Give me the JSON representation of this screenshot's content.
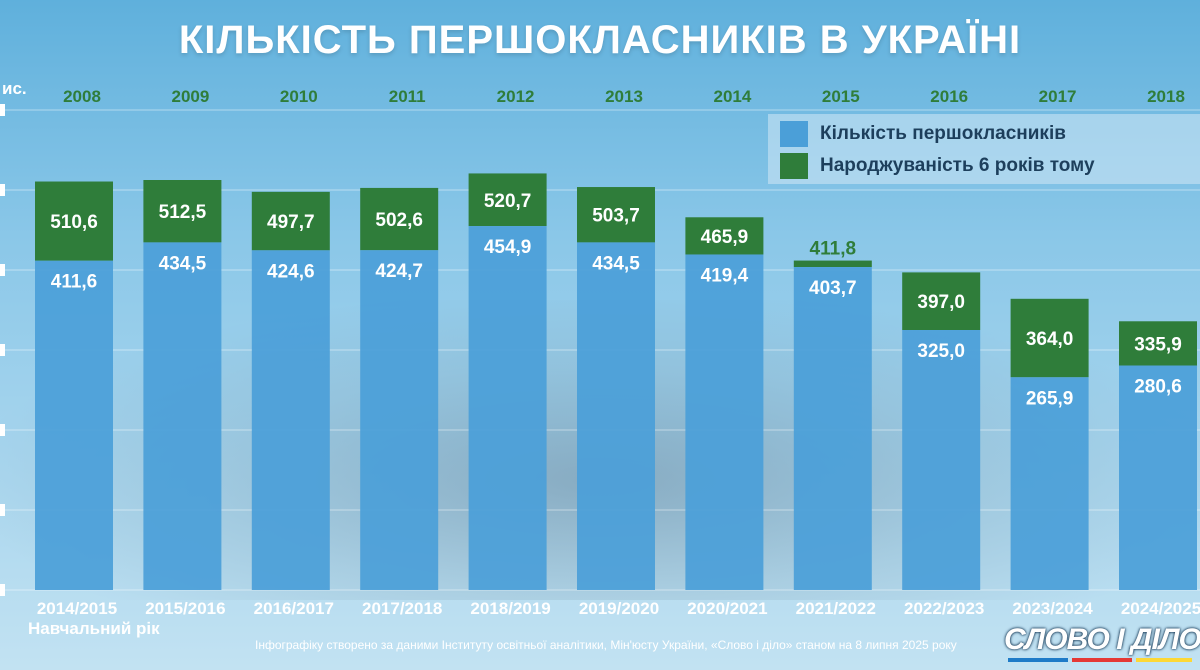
{
  "title": "КІЛЬКІСТЬ ПЕРШОКЛАСНИКІВ В УКРАЇНІ",
  "unit_label": "ис.",
  "legend": {
    "first_graders": "Кількість першокласників",
    "births": "Народжуваність 6 років тому"
  },
  "xlabel": "Навчальний рік",
  "footer_caption": "Інфографіку створено за даними Інституту освітньої аналітики, Мін'юсту України, «Слово і діло» станом на 8 липня 2025 року",
  "logo": "СЛОВО І ДІЛО",
  "colors": {
    "first_graders": "#4b9fd8",
    "births": "#2f7d3a",
    "year_label": "#2f7d3a",
    "background": "#8ac7e8"
  },
  "chart_data": {
    "type": "bar",
    "categories": [
      "2014/2015",
      "2015/2016",
      "2016/2017",
      "2017/2018",
      "2018/2019",
      "2019/2020",
      "2020/2021",
      "2021/2022",
      "2022/2023",
      "2023/2024",
      "2024/2025"
    ],
    "birth_years": [
      "2008",
      "2009",
      "2010",
      "2011",
      "2012",
      "2013",
      "2014",
      "2015",
      "2016",
      "2017",
      "2018"
    ],
    "series": [
      {
        "name": "Кількість першокласників",
        "values": [
          411.6,
          434.5,
          424.6,
          424.7,
          454.9,
          434.5,
          419.4,
          403.7,
          325.0,
          265.9,
          280.6
        ]
      },
      {
        "name": "Народжуваність 6 років тому",
        "values": [
          510.6,
          512.5,
          497.7,
          502.6,
          520.7,
          503.7,
          465.9,
          411.8,
          397.0,
          364.0,
          335.9
        ]
      }
    ],
    "labels": {
      "first_graders": [
        "411,6",
        "434,5",
        "424,6",
        "424,7",
        "454,9",
        "434,5",
        "419,4",
        "403,7",
        "325,0",
        "265,9",
        "280,6"
      ],
      "births": [
        "510,6",
        "512,5",
        "497,7",
        "502,6",
        "520,7",
        "503,7",
        "465,9",
        "411,8",
        "397,0",
        "364,0",
        "335,9"
      ]
    },
    "xlabel": "Навчальний рік",
    "ylim": [
      0,
      600
    ],
    "grid": true,
    "legend_position": "top-right"
  }
}
